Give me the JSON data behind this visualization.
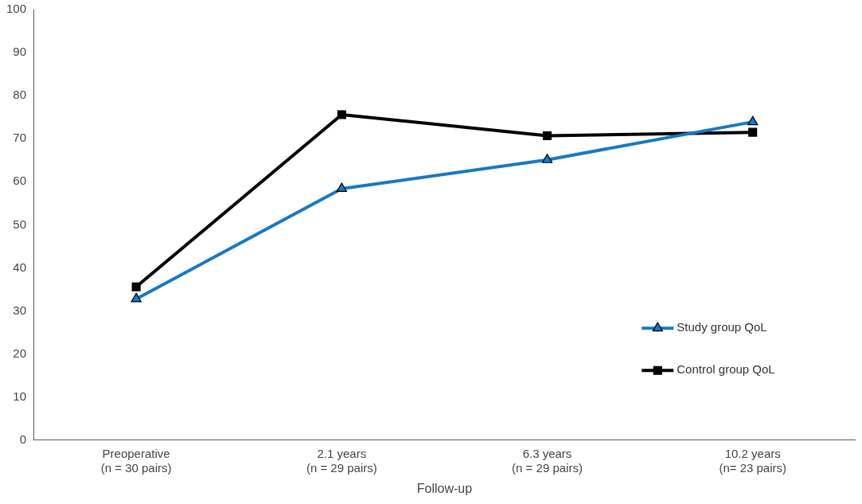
{
  "chart_data": {
    "type": "line",
    "xlabel": "Follow-up",
    "categories": [
      "Preoperative\n(n = 30 pairs)",
      "2.1 years\n(n = 29 pairs)",
      "6.3 years\n(n = 29 pairs)",
      "10.2 years\n(n= 23 pairs)"
    ],
    "series": [
      {
        "name": "Study group QoL",
        "color": "#1a78c2",
        "marker": "triangle",
        "values": [
          32.8,
          58.4,
          65.1,
          73.9
        ]
      },
      {
        "name": "Control group QoL",
        "color": "#000000",
        "marker": "square",
        "values": [
          35.6,
          75.6,
          70.7,
          71.5
        ]
      }
    ],
    "ylim": [
      0,
      100
    ],
    "yticks": [
      0,
      10,
      20,
      30,
      40,
      50,
      60,
      70,
      80,
      90,
      100
    ],
    "grid": false,
    "legend": "right",
    "line_style": "solid"
  }
}
